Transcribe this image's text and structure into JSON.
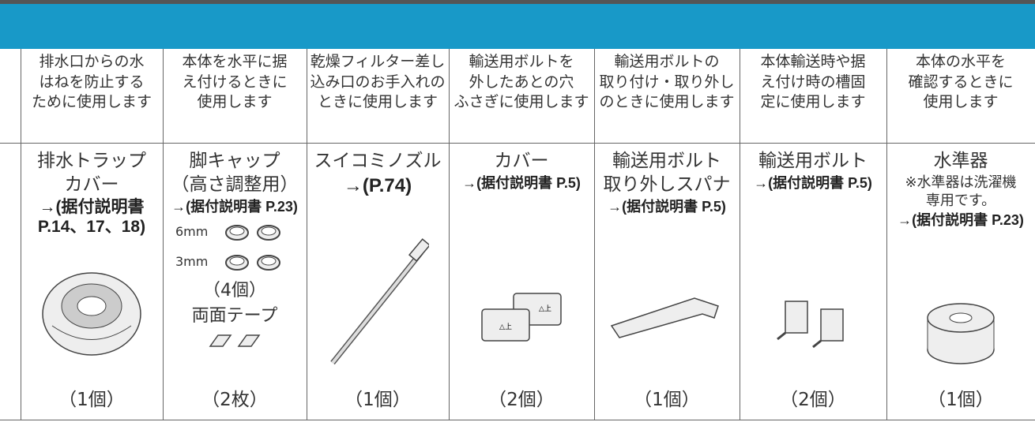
{
  "table": {
    "usage": [
      [
        "排水口からの水",
        "はねを防止する",
        "ために使用します"
      ],
      [
        "本体を水平に据",
        "え付けるときに",
        "使用します"
      ],
      [
        "乾燥フィルター差し",
        "込み口のお手入れの",
        "ときに使用します"
      ],
      [
        "輸送用ボルトを",
        "外したあとの穴",
        "ふさぎに使用します"
      ],
      [
        "輸送用ボルトの",
        "取り付け・取り外し",
        "のときに使用します"
      ],
      [
        "本体輸送時や据",
        "え付け時の槽固",
        "定に使用します"
      ],
      [
        "本体の水平を",
        "確認するときに",
        "使用します"
      ]
    ],
    "items": [
      {
        "name": [
          "排水トラップ",
          "カバー"
        ],
        "ref": [
          "→(据付説明書",
          "P.14、17、18)"
        ],
        "count": "（1個）"
      },
      {
        "name": [
          "脚キャップ",
          "（高さ調整用）"
        ],
        "ref": [
          "→(据付説明書 P.23)"
        ],
        "sizes": [
          "6mm",
          "3mm"
        ],
        "quantity": "（4個）",
        "tape": "両面テープ",
        "count": "（2枚）"
      },
      {
        "name": [
          "スイコミノズル"
        ],
        "ref": [
          "→(P.74)"
        ],
        "count": "（1個）"
      },
      {
        "name": [
          "カバー"
        ],
        "ref": [
          "→(据付説明書 P.5)"
        ],
        "count": "（2個）"
      },
      {
        "name": [
          "輸送用ボルト",
          "取り外しスパナ"
        ],
        "ref": [
          "→(据付説明書 P.5)"
        ],
        "count": "（1個）"
      },
      {
        "name": [
          "輸送用ボルト"
        ],
        "ref": [
          "→(据付説明書 P.5)"
        ],
        "count": "（2個）"
      },
      {
        "name": [
          "水準器"
        ],
        "note": [
          "※水準器は洗濯機",
          "専用です。"
        ],
        "ref": [
          "→(据付説明書 P.23)"
        ],
        "count": "（1個）"
      }
    ]
  }
}
